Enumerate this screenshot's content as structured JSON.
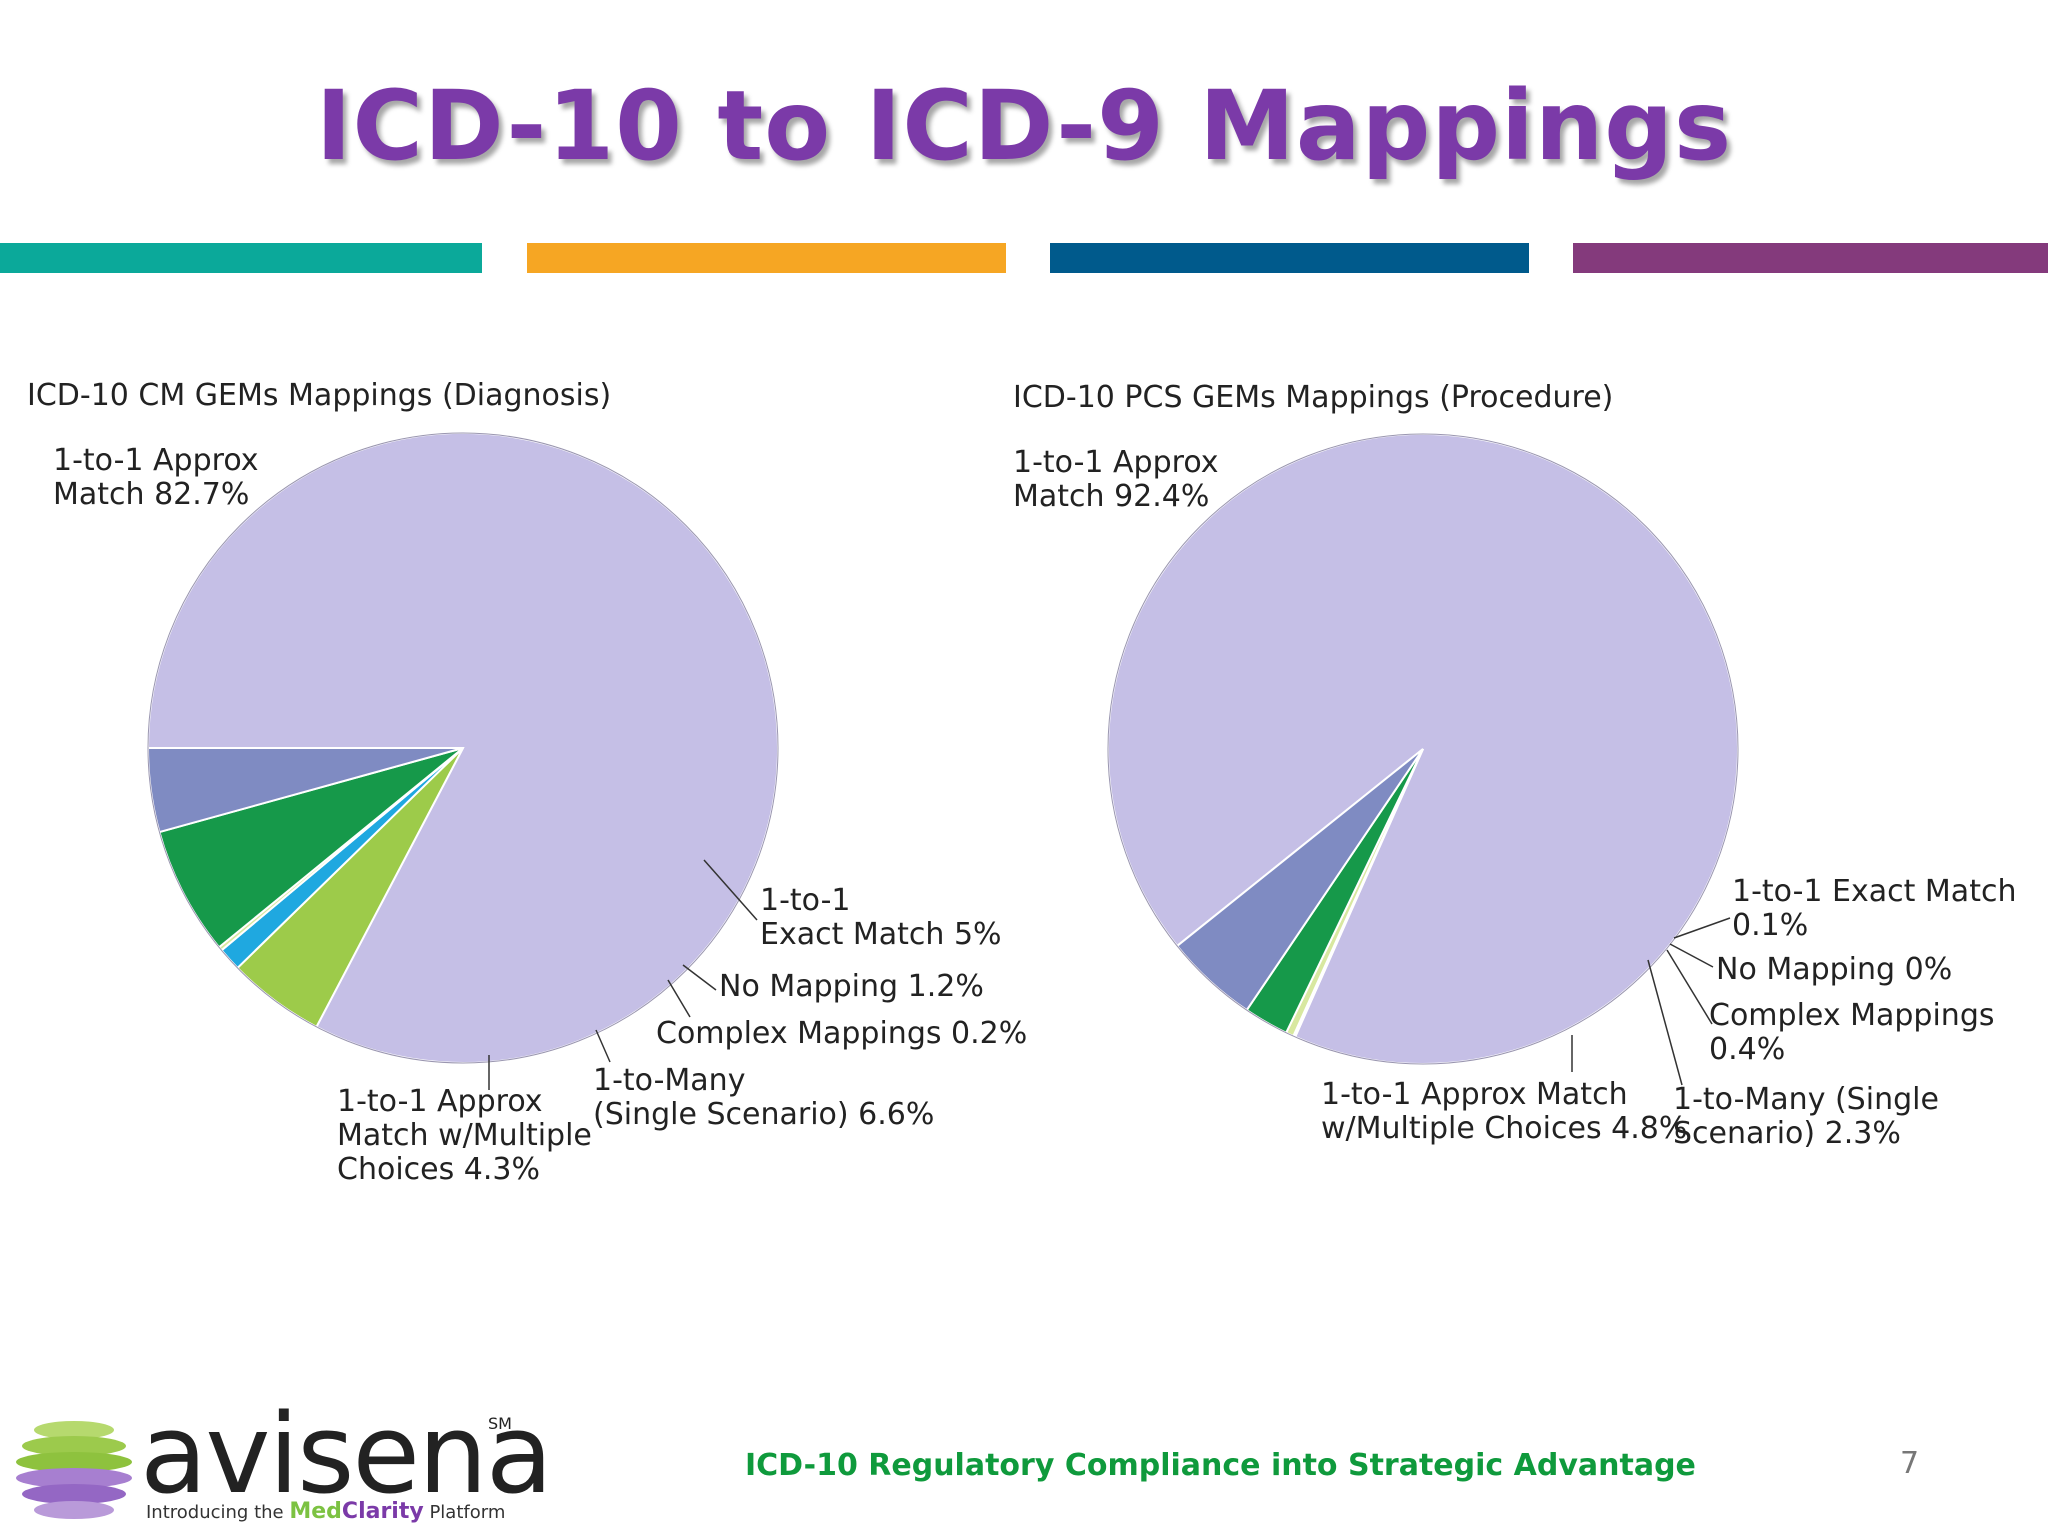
{
  "slide": {
    "title": "ICD-10 to ICD-9 Mappings",
    "footer": "ICD-10 Regulatory Compliance into Strategic Advantage",
    "page_number": "7",
    "stripe_colors": [
      "#0ba99a",
      "#f6a623",
      "#005a8c",
      "#843a7c"
    ]
  },
  "logo": {
    "word": "avisena",
    "sm": "SM",
    "tag_intro": "Introducing the",
    "tag_med": "Med",
    "tag_clarity": "Clarity",
    "tag_platform": "Platform"
  },
  "chart_data": [
    {
      "type": "pie",
      "title": "ICD-10 CM GEMs Mappings (Diagnosis)",
      "start_angle_deg": 180,
      "slices": [
        {
          "label_lines": [
            "1-to-1 Approx",
            "Match 82.7%"
          ],
          "value": 82.7,
          "color": "#c5bfe6"
        },
        {
          "label_lines": [
            "1-to-1",
            "Exact Match 5%"
          ],
          "value": 5.0,
          "color": "#9dcb4a"
        },
        {
          "label_lines": [
            "No Mapping 1.2%"
          ],
          "value": 1.2,
          "color": "#1fa8e0"
        },
        {
          "label_lines": [
            "Complex Mappings 0.2%"
          ],
          "value": 0.2,
          "color": "#d8e8a0"
        },
        {
          "label_lines": [
            "1-to-Many",
            "(Single Scenario) 6.6%"
          ],
          "value": 6.6,
          "color": "#16994a"
        },
        {
          "label_lines": [
            "1-to-1 Approx",
            "Match w/Multiple",
            "Choices 4.3%"
          ],
          "value": 4.3,
          "color": "#7f8bc2"
        }
      ]
    },
    {
      "type": "pie",
      "title": "ICD-10 PCS GEMs Mappings (Procedure)",
      "start_angle_deg": 141.3,
      "slices": [
        {
          "label_lines": [
            "1-to-1 Approx",
            "Match 92.4%"
          ],
          "value": 92.4,
          "color": "#c5bfe6"
        },
        {
          "label_lines": [
            "1-to-1 Exact Match",
            "0.1%"
          ],
          "value": 0.1,
          "color": "#9dcb4a"
        },
        {
          "label_lines": [
            "No Mapping 0%"
          ],
          "value": 0.0,
          "color": "#1fa8e0"
        },
        {
          "label_lines": [
            "Complex Mappings",
            "0.4%"
          ],
          "value": 0.4,
          "color": "#d8e8a0"
        },
        {
          "label_lines": [
            "1-to-Many (Single",
            "Scenario) 2.3%"
          ],
          "value": 2.3,
          "color": "#16994a"
        },
        {
          "label_lines": [
            "1-to-1 Approx Match",
            "w/Multiple Choices 4.8%"
          ],
          "value": 4.8,
          "color": "#7f8bc2"
        }
      ]
    }
  ]
}
